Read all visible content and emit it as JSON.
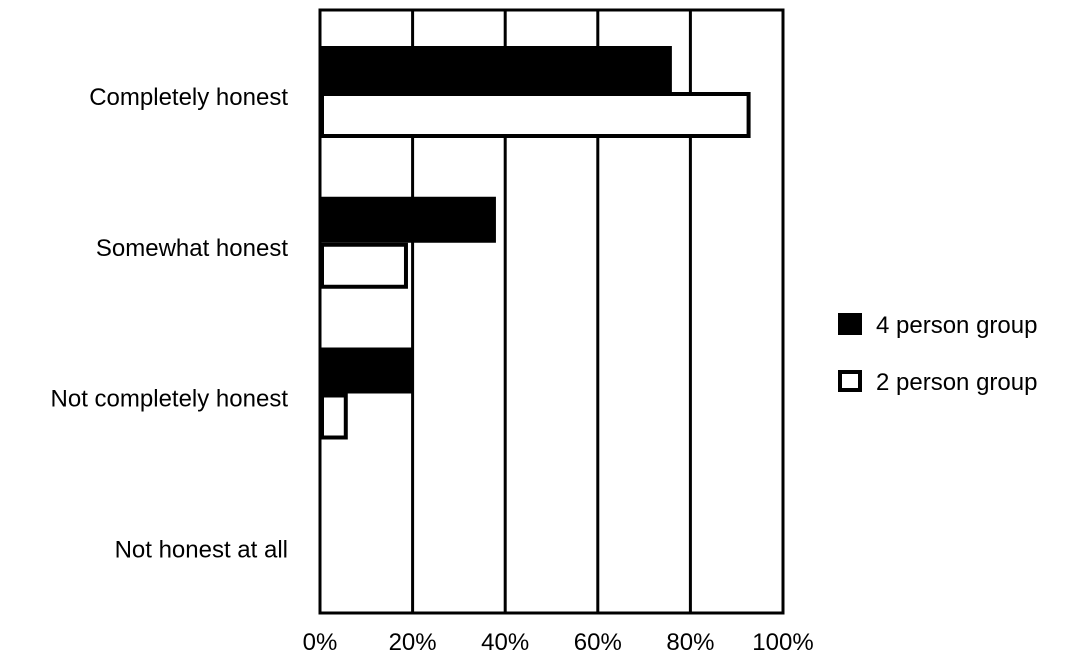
{
  "chart_data": {
    "type": "bar",
    "orientation": "horizontal",
    "title": "",
    "xlabel": "",
    "ylabel": "",
    "xlim": [
      0,
      100
    ],
    "x_tick_labels": [
      "0%",
      "20%",
      "40%",
      "60%",
      "80%",
      "100%"
    ],
    "x_ticks": [
      0,
      20,
      40,
      60,
      80,
      100
    ],
    "grid": "vertical",
    "legend_position": "right",
    "categories": [
      "Completely honest",
      "Somewhat honest",
      "Not completely honest",
      "Not honest at all"
    ],
    "series": [
      {
        "name": "4 person group",
        "color": "#000000",
        "fill": "solid",
        "values": [
          76,
          38,
          20,
          0
        ]
      },
      {
        "name": "2 person group",
        "color": "#ffffff",
        "fill": "outline",
        "values": [
          93,
          19,
          6,
          0
        ]
      }
    ]
  }
}
